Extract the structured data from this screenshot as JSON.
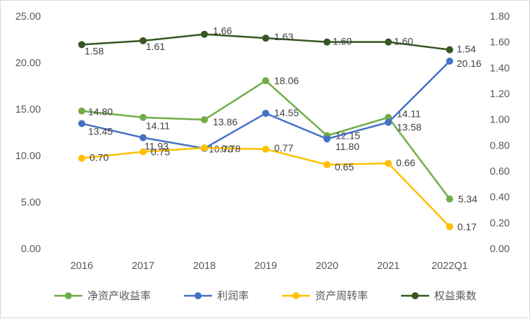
{
  "chart_data": {
    "type": "line",
    "title": "",
    "categories": [
      "2016",
      "2017",
      "2018",
      "2019",
      "2020",
      "2021",
      "2022Q1"
    ],
    "series": [
      {
        "name": "净资产收益率",
        "axis": "left",
        "color": "#70AD47",
        "values": [
          14.8,
          14.11,
          13.86,
          18.06,
          12.15,
          14.11,
          5.34
        ]
      },
      {
        "name": "利润率",
        "axis": "left",
        "color": "#4472C4",
        "values": [
          13.45,
          11.93,
          10.78,
          14.55,
          11.8,
          13.58,
          20.16
        ]
      },
      {
        "name": "资产周转率",
        "axis": "right",
        "color": "#FFC000",
        "values": [
          0.7,
          0.75,
          0.78,
          0.77,
          0.65,
          0.66,
          0.17
        ]
      },
      {
        "name": "权益乘数",
        "axis": "right",
        "color": "#375623",
        "values": [
          1.58,
          1.61,
          1.66,
          1.63,
          1.6,
          1.6,
          1.54
        ]
      }
    ],
    "left_axis": {
      "min": 0,
      "max": 25,
      "step": 5,
      "tick_labels": [
        "0.00",
        "5.00",
        "10.00",
        "15.00",
        "20.00",
        "25.00"
      ]
    },
    "right_axis": {
      "min": 0,
      "max": 1.8,
      "step": 0.2,
      "tick_labels": [
        "0.00",
        "0.20",
        "0.40",
        "0.60",
        "0.80",
        "1.00",
        "1.20",
        "1.40",
        "1.60",
        "1.80"
      ]
    },
    "legend_position": "bottom",
    "grid": false,
    "data_labels_shown": true
  }
}
